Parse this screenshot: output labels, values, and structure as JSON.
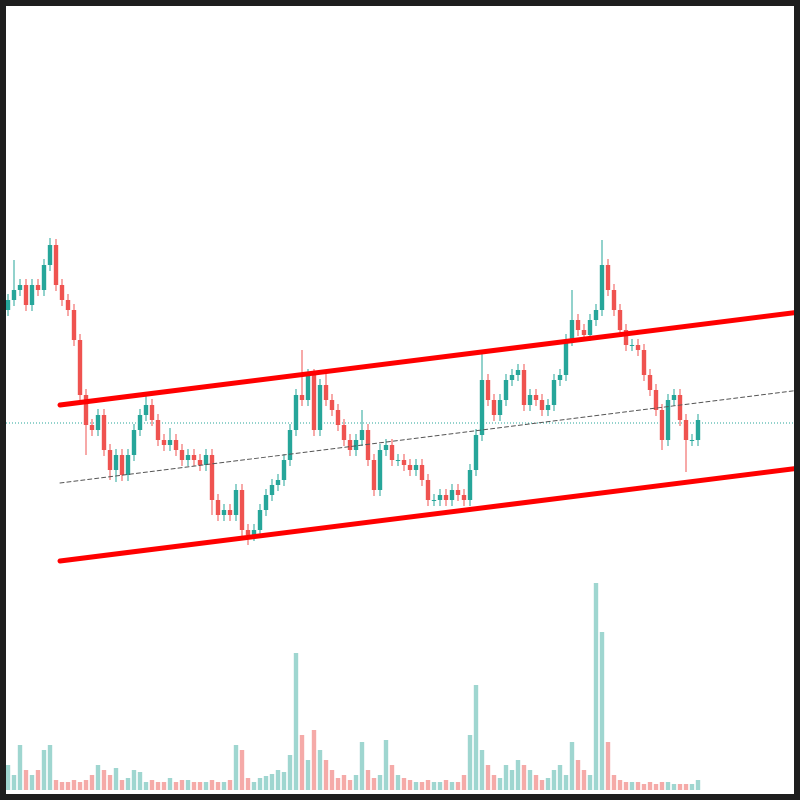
{
  "chart_data": {
    "type": "candlestick",
    "up_color": "#26a69a",
    "down_color": "#ef5350",
    "volume_up_color": "#9fd6d0",
    "volume_down_color": "#f5aaa8",
    "xlim": [
      -1.333,
      132
    ],
    "ylim": [
      0,
      800
    ],
    "volume_ylim": [
      0,
      220
    ],
    "open": [
      490,
      500,
      510,
      515,
      495,
      515,
      510,
      535,
      555,
      515,
      500,
      490,
      460,
      405,
      375,
      370,
      385,
      350,
      330,
      345,
      325,
      345,
      370,
      385,
      395,
      380,
      360,
      355,
      360,
      350,
      340,
      345,
      340,
      335,
      345,
      300,
      285,
      290,
      285,
      310,
      270,
      265,
      270,
      290,
      305,
      315,
      320,
      340,
      370,
      405,
      400,
      425,
      370,
      415,
      400,
      390,
      375,
      360,
      350,
      360,
      370,
      340,
      310,
      350,
      355,
      340,
      340,
      335,
      330,
      335,
      320,
      300,
      300,
      305,
      300,
      310,
      305,
      300,
      330,
      365,
      420,
      400,
      385,
      400,
      420,
      425,
      430,
      395,
      405,
      400,
      390,
      395,
      420,
      425,
      460,
      480,
      470,
      465,
      480,
      490,
      535,
      510,
      490,
      470,
      455,
      455,
      450,
      425,
      410,
      390,
      360,
      400,
      405,
      380,
      360,
      360
    ],
    "high": [
      506,
      540,
      521,
      521,
      521,
      521,
      541,
      562,
      561,
      521,
      506,
      496,
      466,
      411,
      381,
      391,
      391,
      356,
      351,
      351,
      351,
      376,
      391,
      405,
      401,
      386,
      366,
      372,
      366,
      356,
      351,
      351,
      346,
      351,
      351,
      306,
      296,
      296,
      316,
      316,
      276,
      276,
      296,
      311,
      321,
      326,
      346,
      376,
      411,
      450,
      431,
      431,
      421,
      428,
      406,
      396,
      381,
      366,
      366,
      390,
      376,
      346,
      356,
      361,
      361,
      346,
      346,
      341,
      341,
      341,
      326,
      306,
      311,
      311,
      316,
      316,
      311,
      336,
      371,
      450,
      426,
      406,
      406,
      426,
      431,
      436,
      436,
      411,
      411,
      406,
      401,
      426,
      431,
      466,
      510,
      486,
      476,
      486,
      496,
      560,
      541,
      516,
      496,
      476,
      461,
      461,
      456,
      431,
      416,
      396,
      406,
      411,
      411,
      386,
      366,
      386
    ],
    "low": [
      484,
      494,
      504,
      489,
      489,
      504,
      504,
      529,
      509,
      494,
      484,
      454,
      399,
      345,
      364,
      364,
      344,
      320,
      318,
      319,
      319,
      339,
      364,
      379,
      374,
      354,
      349,
      349,
      344,
      334,
      334,
      334,
      329,
      329,
      285,
      279,
      279,
      279,
      279,
      264,
      255,
      259,
      264,
      284,
      299,
      309,
      314,
      334,
      364,
      394,
      394,
      364,
      364,
      394,
      384,
      369,
      354,
      344,
      344,
      354,
      334,
      304,
      304,
      344,
      334,
      334,
      329,
      324,
      324,
      314,
      294,
      294,
      294,
      294,
      294,
      299,
      294,
      294,
      324,
      359,
      394,
      379,
      379,
      394,
      414,
      419,
      389,
      389,
      394,
      384,
      384,
      389,
      414,
      419,
      454,
      464,
      459,
      459,
      474,
      484,
      504,
      484,
      464,
      449,
      449,
      444,
      419,
      404,
      384,
      350,
      354,
      394,
      374,
      328,
      354,
      354
    ],
    "close": [
      500,
      510,
      515,
      495,
      515,
      510,
      535,
      555,
      515,
      500,
      490,
      460,
      405,
      375,
      370,
      385,
      350,
      330,
      345,
      325,
      345,
      370,
      385,
      395,
      380,
      360,
      355,
      360,
      350,
      340,
      345,
      340,
      335,
      345,
      300,
      285,
      290,
      285,
      310,
      270,
      265,
      270,
      290,
      305,
      315,
      320,
      340,
      370,
      405,
      400,
      425,
      370,
      415,
      400,
      390,
      375,
      360,
      350,
      360,
      370,
      340,
      310,
      350,
      355,
      340,
      340,
      335,
      330,
      335,
      320,
      300,
      300,
      305,
      300,
      310,
      305,
      300,
      330,
      365,
      420,
      400,
      385,
      400,
      420,
      425,
      430,
      395,
      405,
      400,
      390,
      395,
      420,
      425,
      460,
      480,
      470,
      465,
      480,
      490,
      535,
      510,
      490,
      470,
      455,
      455,
      450,
      425,
      410,
      390,
      360,
      400,
      405,
      380,
      360,
      360,
      380
    ],
    "volume": [
      25,
      15,
      45,
      20,
      15,
      20,
      40,
      45,
      10,
      8,
      8,
      10,
      8,
      10,
      15,
      25,
      20,
      15,
      22,
      10,
      12,
      20,
      18,
      8,
      10,
      8,
      8,
      12,
      8,
      10,
      10,
      8,
      8,
      8,
      10,
      8,
      8,
      10,
      45,
      40,
      12,
      8,
      12,
      14,
      16,
      20,
      18,
      35,
      137,
      55,
      30,
      60,
      40,
      30,
      20,
      12,
      15,
      10,
      15,
      48,
      20,
      12,
      15,
      50,
      25,
      15,
      12,
      10,
      8,
      8,
      10,
      8,
      8,
      10,
      8,
      8,
      15,
      55,
      105,
      40,
      25,
      15,
      12,
      25,
      20,
      30,
      25,
      20,
      15,
      10,
      12,
      20,
      25,
      15,
      48,
      30,
      20,
      15,
      207,
      158,
      48,
      15,
      10,
      8,
      8,
      8,
      6,
      8,
      6,
      8,
      8,
      6,
      6,
      6,
      6,
      10
    ],
    "channels": [
      {
        "color": "#ff0000",
        "dashed": false,
        "x": [
          8.667,
          132
        ],
        "values": [
          395,
          488
        ]
      },
      {
        "color": "#ff0000",
        "dashed": false,
        "x": [
          8.667,
          132
        ],
        "values": [
          239,
          332
        ]
      },
      {
        "color": "#555555",
        "dashed": true,
        "x": [
          8.667,
          132
        ],
        "values": [
          317,
          410
        ]
      }
    ],
    "price_line": {
      "value": 377,
      "color": "#26a69a"
    }
  }
}
